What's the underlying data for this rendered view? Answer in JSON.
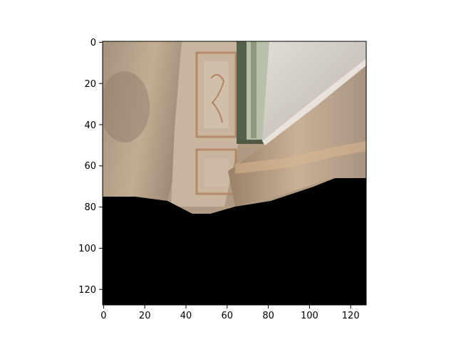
{
  "figure": {
    "background": "#ffffff",
    "axes_color": "#000000"
  },
  "image_content": {
    "description_tags": [
      "indoor-room-view",
      "ornate-wall-panels",
      "doorway",
      "floor-occluded-black"
    ],
    "colors": {
      "wall_warm": "#b8a690",
      "wall_light": "#d8d0c6",
      "shadow": "#7a6a58",
      "door_frame": "#5e6b50",
      "panel_line": "#a86a4a",
      "occluded": "#000000"
    }
  },
  "axes": {
    "x_ticks": [
      "0",
      "20",
      "40",
      "60",
      "80",
      "100",
      "120"
    ],
    "y_ticks": [
      "0",
      "20",
      "40",
      "60",
      "80",
      "100",
      "120"
    ],
    "x_range": [
      -0.5,
      127.5
    ],
    "y_range": [
      127.5,
      -0.5
    ]
  }
}
